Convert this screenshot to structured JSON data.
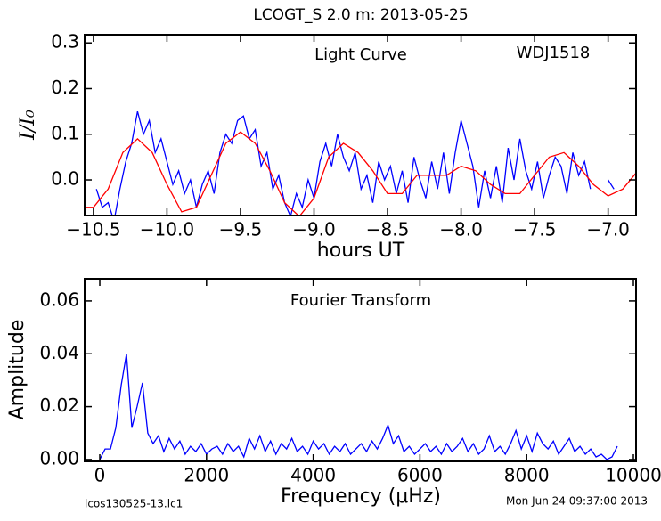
{
  "chart_data": [
    {
      "type": "line",
      "title": "LCOGT_S 2.0 m:  2013-05-25",
      "xlabel": "hours UT",
      "ylabel": "I/I₀",
      "annotations": [
        {
          "text": "Light Curve"
        },
        {
          "text": "WDJ1518"
        }
      ],
      "xlim": [
        -10.56,
        -6.81
      ],
      "ylim": [
        -0.078,
        0.318
      ],
      "xticks": [
        {
          "value": -10.5,
          "label": "−10.5"
        },
        {
          "value": -10.0,
          "label": "−10.0"
        },
        {
          "value": -9.5,
          "label": "−9.5"
        },
        {
          "value": -9.0,
          "label": "−9.0"
        },
        {
          "value": -8.5,
          "label": "−8.5"
        },
        {
          "value": -8.0,
          "label": "−8.0"
        },
        {
          "value": -7.5,
          "label": "−7.5"
        },
        {
          "value": -7.0,
          "label": "−7.0"
        }
      ],
      "yticks": [
        {
          "value": 0.0,
          "label": "0.0"
        },
        0.1,
        0.2,
        0.3
      ],
      "series": [
        {
          "color": "#0000ff",
          "x": [
            -10.48,
            -10.44,
            -10.4,
            -10.36,
            -10.32,
            -10.28,
            -10.24,
            -10.2,
            -10.16,
            -10.12,
            -10.08,
            -10.04,
            -10.0,
            -9.96,
            -9.92,
            -9.88,
            -9.84,
            -9.8,
            -9.76,
            -9.72,
            -9.68,
            -9.64,
            -9.6,
            -9.56,
            -9.52,
            -9.48,
            -9.44,
            -9.4,
            -9.36,
            -9.32,
            -9.28,
            -9.24,
            -9.2,
            -9.16,
            -9.12,
            -9.08,
            -9.04,
            -9.0,
            -8.96,
            -8.92,
            -8.88,
            -8.84,
            -8.8,
            -8.76,
            -8.72,
            -8.68,
            -8.64,
            -8.6,
            -8.56,
            -8.52,
            -8.48,
            -8.44,
            -8.4,
            -8.36,
            -8.32,
            -8.28,
            -8.24,
            -8.2,
            -8.16,
            -8.12,
            -8.08,
            -8.04,
            -8.0,
            -7.96,
            -7.92,
            -7.88,
            -7.84,
            -7.8,
            -7.76,
            -7.72,
            -7.68,
            -7.64,
            -7.6,
            -7.56,
            -7.52,
            -7.48,
            -7.44,
            -7.4,
            -7.36,
            -7.32,
            -7.28,
            -7.24,
            -7.2,
            -7.16,
            -7.12,
            -7.06,
            -7.0,
            -6.96
          ],
          "values": [
            -0.02,
            -0.06,
            -0.05,
            -0.09,
            -0.02,
            0.04,
            0.08,
            0.15,
            0.1,
            0.13,
            0.06,
            0.09,
            0.04,
            -0.01,
            0.02,
            -0.03,
            0.0,
            -0.06,
            -0.01,
            0.02,
            -0.03,
            0.06,
            0.1,
            0.08,
            0.13,
            0.14,
            0.09,
            0.11,
            0.03,
            0.06,
            -0.02,
            0.01,
            -0.05,
            -0.08,
            -0.03,
            -0.06,
            0.0,
            -0.04,
            0.04,
            0.08,
            0.03,
            0.1,
            0.05,
            0.02,
            0.06,
            -0.02,
            0.01,
            -0.05,
            0.04,
            0.0,
            0.03,
            -0.03,
            0.02,
            -0.05,
            0.05,
            0.0,
            -0.04,
            0.04,
            -0.02,
            0.06,
            -0.03,
            0.06,
            0.13,
            0.08,
            0.03,
            -0.06,
            0.02,
            -0.04,
            0.03,
            -0.05,
            0.07,
            0.0,
            0.09,
            0.02,
            -0.02,
            0.04,
            -0.04,
            0.01,
            0.05,
            0.03,
            -0.03,
            0.06,
            0.01,
            0.04,
            -0.02,
            null,
            0.0,
            -0.02
          ]
        },
        {
          "color": "#ff0000",
          "x": [
            -10.56,
            -10.5,
            -10.4,
            -10.3,
            -10.2,
            -10.1,
            -10.0,
            -9.9,
            -9.8,
            -9.7,
            -9.6,
            -9.5,
            -9.4,
            -9.3,
            -9.2,
            -9.1,
            -9.0,
            -8.9,
            -8.8,
            -8.7,
            -8.6,
            -8.5,
            -8.4,
            -8.3,
            -8.2,
            -8.1,
            -8.0,
            -7.9,
            -7.8,
            -7.7,
            -7.6,
            -7.5,
            -7.4,
            -7.3,
            -7.2,
            -7.1,
            -7.0,
            -6.9,
            -6.81
          ],
          "values": [
            -0.06,
            -0.06,
            -0.02,
            0.06,
            0.09,
            0.06,
            -0.01,
            -0.07,
            -0.06,
            0.01,
            0.08,
            0.105,
            0.08,
            0.02,
            -0.05,
            -0.08,
            -0.04,
            0.05,
            0.08,
            0.06,
            0.02,
            -0.03,
            -0.03,
            0.01,
            0.01,
            0.01,
            0.03,
            0.02,
            -0.01,
            -0.03,
            -0.03,
            0.01,
            0.05,
            0.06,
            0.03,
            -0.01,
            -0.035,
            -0.02,
            0.015
          ]
        }
      ]
    },
    {
      "type": "line",
      "xlabel": "Frequency (μHz)",
      "ylabel": "Amplitude",
      "annotations": [
        {
          "text": "Fourier Transform"
        }
      ],
      "xlim": [
        -284,
        10050
      ],
      "ylim": [
        -0.0007,
        0.0684
      ],
      "xticks": [
        0,
        2000,
        4000,
        6000,
        8000,
        10000
      ],
      "yticks": [
        {
          "value": 0.0,
          "label": "0.00"
        },
        {
          "value": 0.02,
          "label": "0.02"
        },
        {
          "value": 0.04,
          "label": "0.04"
        },
        {
          "value": 0.06,
          "label": "0.06"
        }
      ],
      "series": [
        {
          "color": "#0000ff",
          "x": [
            0,
            100,
            200,
            300,
            400,
            500,
            600,
            700,
            800,
            900,
            1000,
            1100,
            1200,
            1300,
            1400,
            1500,
            1600,
            1700,
            1800,
            1900,
            2000,
            2100,
            2200,
            2300,
            2400,
            2500,
            2600,
            2700,
            2800,
            2900,
            3000,
            3100,
            3200,
            3300,
            3400,
            3500,
            3600,
            3700,
            3800,
            3900,
            4000,
            4100,
            4200,
            4300,
            4400,
            4500,
            4600,
            4700,
            4800,
            4900,
            5000,
            5100,
            5200,
            5300,
            5400,
            5500,
            5600,
            5700,
            5800,
            5900,
            6000,
            6100,
            6200,
            6300,
            6400,
            6500,
            6600,
            6700,
            6800,
            6900,
            7000,
            7100,
            7200,
            7300,
            7400,
            7500,
            7600,
            7700,
            7800,
            7900,
            8000,
            8100,
            8200,
            8300,
            8400,
            8500,
            8600,
            8700,
            8800,
            8900,
            9000,
            9100,
            9200,
            9300,
            9400,
            9500,
            9600,
            9700
          ],
          "values": [
            0.0,
            0.004,
            0.004,
            0.012,
            0.028,
            0.04,
            0.012,
            0.02,
            0.029,
            0.01,
            0.006,
            0.009,
            0.003,
            0.008,
            0.004,
            0.007,
            0.002,
            0.005,
            0.003,
            0.006,
            0.002,
            0.004,
            0.005,
            0.002,
            0.006,
            0.003,
            0.005,
            0.001,
            0.008,
            0.004,
            0.009,
            0.003,
            0.007,
            0.002,
            0.006,
            0.004,
            0.008,
            0.003,
            0.005,
            0.002,
            0.007,
            0.004,
            0.006,
            0.002,
            0.005,
            0.003,
            0.006,
            0.002,
            0.004,
            0.006,
            0.003,
            0.007,
            0.004,
            0.008,
            0.013,
            0.006,
            0.009,
            0.003,
            0.005,
            0.002,
            0.004,
            0.006,
            0.003,
            0.005,
            0.002,
            0.006,
            0.003,
            0.005,
            0.008,
            0.003,
            0.006,
            0.002,
            0.004,
            0.009,
            0.003,
            0.005,
            0.002,
            0.006,
            0.011,
            0.004,
            0.009,
            0.003,
            0.01,
            0.006,
            0.004,
            0.007,
            0.002,
            0.005,
            0.008,
            0.003,
            0.005,
            0.002,
            0.004,
            0.001,
            0.002,
            0.0,
            0.001,
            0.005
          ]
        }
      ]
    }
  ],
  "footer": {
    "file": "lcos130525-13.lc1",
    "date": "Mon Jun 24 09:37:00 2013"
  }
}
